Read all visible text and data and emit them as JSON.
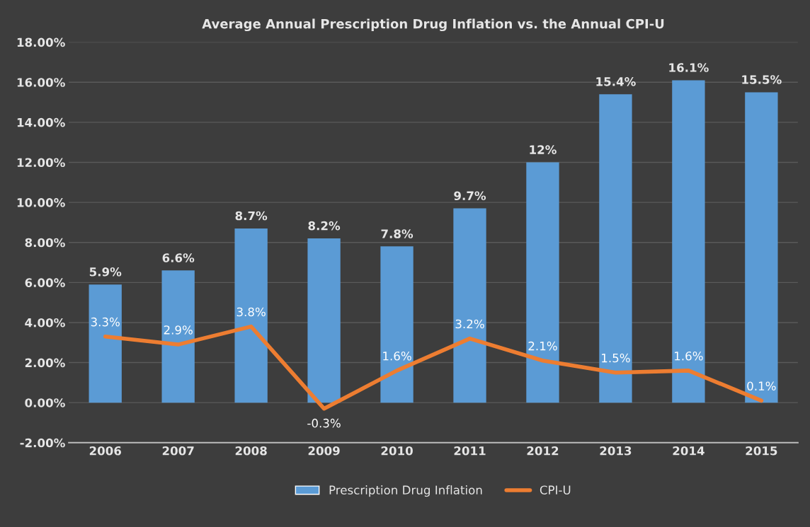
{
  "chart_data": {
    "type": "bar",
    "title": "Average Annual Prescription Drug Inflation vs. the Annual CPI-U",
    "categories": [
      "2006",
      "2007",
      "2008",
      "2009",
      "2010",
      "2011",
      "2012",
      "2013",
      "2014",
      "2015"
    ],
    "series": [
      {
        "name": "Prescription Drug Inflation",
        "color": "#5b9bd5",
        "values": [
          5.9,
          6.6,
          8.7,
          8.2,
          7.8,
          9.7,
          12,
          15.4,
          16.1,
          15.5
        ],
        "value_labels": [
          "5.9%",
          "6.6%",
          "8.7%",
          "8.2%",
          "7.8%",
          "9.7%",
          "12%",
          "15.4%",
          "16.1%",
          "15.5%"
        ]
      },
      {
        "name": "CPI-U",
        "type": "line",
        "color": "#ed7d31",
        "values": [
          3.3,
          2.9,
          3.8,
          -0.3,
          1.6,
          3.2,
          2.1,
          1.5,
          1.6,
          0.1
        ],
        "value_labels": [
          "3.3%",
          "2.9%",
          "3.8%",
          "-0.3%",
          "1.6%",
          "3.2%",
          "2.1%",
          "1.5%",
          "1.6%",
          "0.1%"
        ]
      }
    ],
    "ylim": [
      -2,
      18
    ],
    "yticks": [
      {
        "value": -2,
        "label": "-2.00%"
      },
      {
        "value": 0,
        "label": "0.00%"
      },
      {
        "value": 2,
        "label": "2.00%"
      },
      {
        "value": 4,
        "label": "4.00%"
      },
      {
        "value": 6,
        "label": "6.00%"
      },
      {
        "value": 8,
        "label": "8.00%"
      },
      {
        "value": 10,
        "label": "10.00%"
      },
      {
        "value": 12,
        "label": "12.00%"
      },
      {
        "value": 14,
        "label": "14.00%"
      },
      {
        "value": 16,
        "label": "16.00%"
      },
      {
        "value": 18,
        "label": "18.00%"
      }
    ],
    "grid": "y",
    "legend": "bottom",
    "marker": "none"
  }
}
